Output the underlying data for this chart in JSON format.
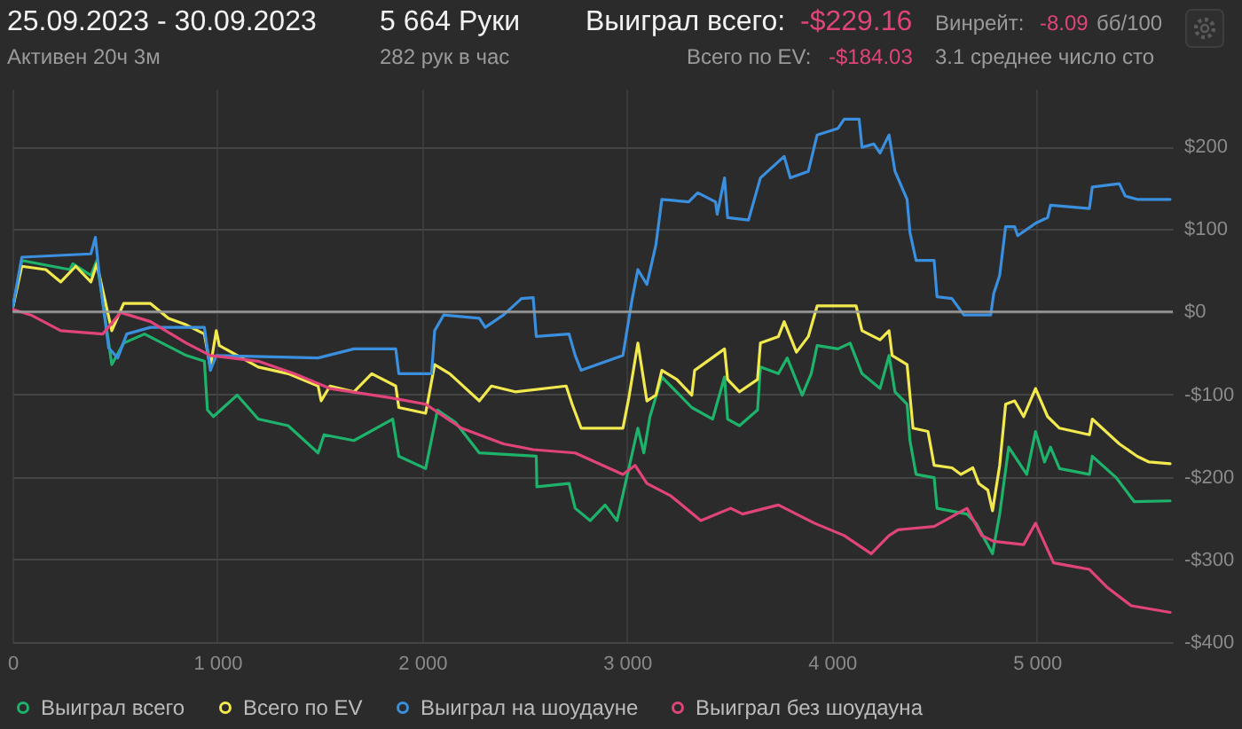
{
  "chart_data": {
    "type": "line",
    "title": "25.09.2023 - 30.09.2023",
    "subtitle": "Активен 20ч 3м",
    "annotations": [
      "5 664 Руки",
      "282 рук в час",
      "Выиграл всего:",
      "-$229.16",
      "Всего по EV:",
      "-$184.03",
      "Винрейт:",
      "-8.09",
      "бб/100",
      "3.1 среднее число сто"
    ],
    "xlim": [
      0,
      5664
    ],
    "xticks": [
      0,
      {
        "value": 1000,
        "label": "1 000"
      },
      {
        "value": 2000,
        "label": "2 000"
      },
      {
        "value": 3000,
        "label": "3 000"
      },
      {
        "value": 4000,
        "label": "4 000"
      },
      {
        "value": 5000,
        "label": "5 000"
      }
    ],
    "ylim": [
      -400,
      270
    ],
    "yticks": [
      {
        "value": -400,
        "label": "-$400"
      },
      {
        "value": -300,
        "label": "-$300"
      },
      {
        "value": -200,
        "label": "-$200"
      },
      {
        "value": -100,
        "label": "-$100"
      },
      {
        "value": 0,
        "label": "$0"
      },
      {
        "value": 100,
        "label": "$100"
      },
      {
        "value": 200,
        "label": "$200"
      }
    ],
    "grid": true,
    "legend": "bottom",
    "marker": "none",
    "line_style": "solid",
    "ref_lines": [
      {
        "axis": "y",
        "value": 0,
        "color": "#9a9a9a"
      }
    ],
    "series": [
      {
        "name": "Выиграл всего",
        "color": "#1db36b",
        "x": [
          0,
          46,
          280,
          295,
          383,
          412,
          485,
          543,
          645,
          849,
          937,
          952,
          981,
          1097,
          1200,
          1346,
          1492,
          1521,
          1667,
          1856,
          1886,
          2017,
          2075,
          2163,
          2279,
          2557,
          2560,
          2717,
          2747,
          2820,
          2893,
          2951,
          3053,
          3082,
          3112,
          3170,
          3316,
          3418,
          3476,
          3491,
          3549,
          3637,
          3651,
          3739,
          3782,
          3855,
          3899,
          3928,
          4030,
          4089,
          4147,
          4235,
          4279,
          4308,
          4367,
          4381,
          4411,
          4499,
          4513,
          4659,
          4703,
          4784,
          4819,
          4863,
          4951,
          4994,
          5038,
          5067,
          5111,
          5257,
          5271,
          5388,
          5476,
          5651
        ],
        "values": [
          3,
          62,
          51,
          58,
          44,
          62,
          -64,
          -38,
          -27,
          -53,
          -60,
          -119,
          -127,
          -101,
          -130,
          -138,
          -171,
          -149,
          -156,
          -130,
          -175,
          -190,
          -119,
          -134,
          -171,
          -175,
          -212,
          -208,
          -238,
          -253,
          -234,
          -253,
          -141,
          -171,
          -127,
          -79,
          -116,
          -130,
          -79,
          -130,
          -138,
          -119,
          -67,
          -75,
          -56,
          -101,
          -75,
          -41,
          -45,
          -38,
          -75,
          -93,
          -53,
          -97,
          -112,
          -156,
          -197,
          -201,
          -238,
          -245,
          -256,
          -293,
          -245,
          -164,
          -197,
          -145,
          -182,
          -164,
          -190,
          -197,
          -175,
          -201,
          -230,
          -229
        ]
      },
      {
        "name": "Всего по EV",
        "color": "#f2e94e",
        "x": [
          0,
          46,
          163,
          236,
          309,
          383,
          412,
          485,
          543,
          674,
          762,
          849,
          937,
          966,
          995,
          1010,
          1200,
          1346,
          1492,
          1507,
          1550,
          1667,
          1754,
          1871,
          1886,
          2017,
          2061,
          2134,
          2279,
          2338,
          2454,
          2703,
          2732,
          2776,
          2980,
          3009,
          3053,
          3097,
          3141,
          3170,
          3243,
          3316,
          3330,
          3476,
          3491,
          3549,
          3637,
          3651,
          3739,
          3767,
          3827,
          3885,
          3928,
          4060,
          4118,
          4147,
          4235,
          4279,
          4294,
          4367,
          4396,
          4469,
          4499,
          4586,
          4630,
          4688,
          4717,
          4761,
          4784,
          4819,
          4848,
          4892,
          4936,
          4994,
          5053,
          5111,
          5257,
          5271,
          5403,
          5490,
          5548,
          5651
        ],
        "values": [
          3,
          55,
          51,
          36,
          55,
          36,
          58,
          -23,
          10,
          10,
          -8,
          -16,
          -27,
          -67,
          -23,
          -41,
          -67,
          -75,
          -90,
          -108,
          -90,
          -97,
          -75,
          -90,
          -116,
          -123,
          -64,
          -75,
          -108,
          -90,
          -97,
          -90,
          -112,
          -141,
          -141,
          -104,
          -38,
          -108,
          -101,
          -71,
          -82,
          -101,
          -71,
          -45,
          -82,
          -97,
          -82,
          -38,
          -30,
          -12,
          -49,
          -30,
          7,
          7,
          7,
          -23,
          -34,
          -23,
          -53,
          -64,
          -141,
          -145,
          -186,
          -189,
          -197,
          -189,
          -208,
          -216,
          -241,
          -186,
          -112,
          -108,
          -127,
          -93,
          -127,
          -141,
          -149,
          -130,
          -160,
          -175,
          -182,
          -184
        ]
      },
      {
        "name": "Выиграл на шоудауне",
        "color": "#3a8fde",
        "x": [
          0,
          46,
          383,
          405,
          426,
          470,
          514,
          558,
          674,
          937,
          966,
          995,
          1492,
          1667,
          1871,
          1886,
          2046,
          2061,
          2105,
          2279,
          2308,
          2397,
          2485,
          2542,
          2557,
          2717,
          2747,
          2776,
          2980,
          3024,
          3053,
          3097,
          3141,
          3170,
          3301,
          3345,
          3432,
          3440,
          3476,
          3491,
          3593,
          3651,
          3767,
          3797,
          3885,
          3928,
          4030,
          4060,
          4133,
          4147,
          4205,
          4235,
          4279,
          4308,
          4367,
          4381,
          4411,
          4499,
          4513,
          4586,
          4644,
          4775,
          4790,
          4819,
          4848,
          4892,
          4907,
          4994,
          5053,
          5067,
          5257,
          5271,
          5403,
          5432,
          5490,
          5651
        ],
        "values": [
          3,
          66,
          70,
          90,
          40,
          -44,
          -56,
          -27,
          -19,
          -19,
          -71,
          -53,
          -56,
          -45,
          -45,
          -75,
          -75,
          -23,
          -4,
          -8,
          -19,
          -4,
          16,
          17,
          -30,
          -27,
          -53,
          -71,
          -53,
          14,
          51,
          33,
          81,
          136,
          133,
          144,
          133,
          118,
          162,
          114,
          111,
          162,
          188,
          162,
          170,
          214,
          222,
          233,
          233,
          199,
          203,
          192,
          214,
          170,
          136,
          96,
          62,
          62,
          18,
          16,
          -4,
          -4,
          22,
          44,
          103,
          103,
          92,
          107,
          114,
          129,
          125,
          151,
          155,
          140,
          136,
          136
        ]
      },
      {
        "name": "Выиграл без шоудауна",
        "color": "#e0447a",
        "x": [
          0,
          90,
          236,
          441,
          528,
          674,
          849,
          966,
          1200,
          1375,
          1550,
          1842,
          2017,
          2192,
          2397,
          2542,
          2747,
          2980,
          3039,
          3097,
          3214,
          3360,
          3506,
          3564,
          3739,
          3914,
          4060,
          4192,
          4279,
          4323,
          4499,
          4659,
          4732,
          4790,
          4936,
          4994,
          5082,
          5170,
          5257,
          5345,
          5461,
          5651
        ],
        "values": [
          3,
          -4,
          -23,
          -27,
          -1,
          -12,
          -38,
          -53,
          -60,
          -75,
          -93,
          -104,
          -112,
          -141,
          -160,
          -167,
          -171,
          -197,
          -186,
          -208,
          -223,
          -253,
          -238,
          -245,
          -234,
          -256,
          -271,
          -293,
          -271,
          -264,
          -260,
          -238,
          -271,
          -278,
          -282,
          -256,
          -304,
          -308,
          -312,
          -334,
          -356,
          -364
        ]
      }
    ]
  }
}
